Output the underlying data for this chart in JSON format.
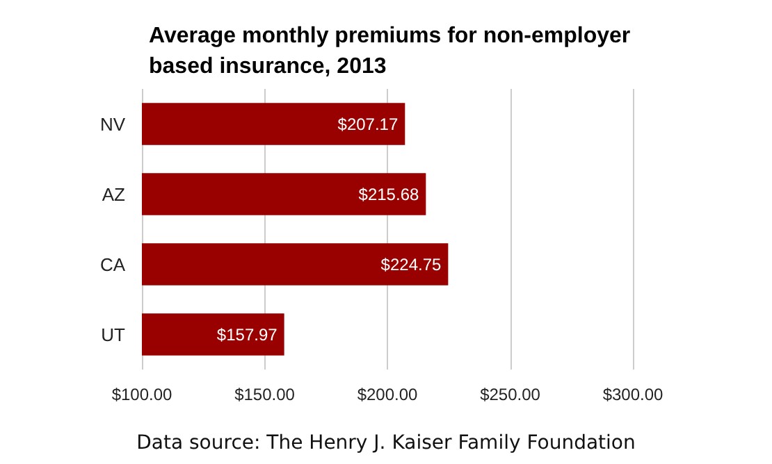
{
  "chart_data": {
    "type": "bar",
    "orientation": "horizontal",
    "title": "Average monthly premiums for non-employer based insurance, 2013",
    "categories": [
      "NV",
      "AZ",
      "CA",
      "UT"
    ],
    "values": [
      207.17,
      215.68,
      224.75,
      157.97
    ],
    "value_labels": [
      "$207.17",
      "$215.68",
      "$224.75",
      "$157.97"
    ],
    "color": "#990000",
    "xlim": [
      100,
      300
    ],
    "xticks": [
      {
        "value": 100,
        "label": "$100.00"
      },
      {
        "value": 150,
        "label": "$150.00"
      },
      {
        "value": 200,
        "label": "$200.00"
      },
      {
        "value": 250,
        "label": "$250.00"
      },
      {
        "value": 300,
        "label": "$300.00"
      }
    ],
    "grid": "x",
    "annotations": [
      "Data source: The Henry J. Kaiser Family Foundation"
    ]
  }
}
